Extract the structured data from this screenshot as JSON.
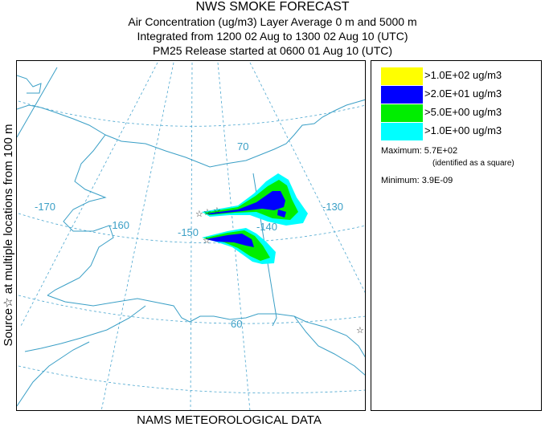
{
  "header": {
    "title": "NWS SMOKE FORECAST",
    "line2": "Air Concentration (ug/m3) Layer Average     0 m and  5000 m",
    "line3": "Integrated from 1200 02 Aug to 1300 02 Aug 10 (UTC)",
    "line4": "PM25 Release started at 0600 01 Aug 10 (UTC)"
  },
  "side_label": "Source☆ at multiple locations from 100 m",
  "map": {
    "grid_labels": {
      "lon_170": "-170",
      "lon_160": "-160",
      "lon_150": "-150",
      "lon_140": "-140",
      "lon_130": "-130",
      "lat_70": "70",
      "lat_60": "60"
    },
    "colors": {
      "grid": "#4aa6cf",
      "coast": "#3a9fc6",
      "level1": "#00ffff",
      "level2": "#00ee00",
      "level3": "#0000ff",
      "level4": "#ffff00"
    }
  },
  "legend": {
    "items": [
      {
        "label": ">1.0E+02 ug/m3",
        "color": "#ffff00"
      },
      {
        "label": ">2.0E+01 ug/m3",
        "color": "#0000ff"
      },
      {
        "label": ">5.0E+00 ug/m3",
        "color": "#00ee00"
      },
      {
        "label": ">1.0E+00 ug/m3",
        "color": "#00ffff"
      }
    ],
    "maximum": "Maximum: 5.7E+02",
    "max_note": "(identified as a square)",
    "minimum": "Minimum: 3.9E-09"
  },
  "footer": "NAMS METEOROLOGICAL DATA"
}
